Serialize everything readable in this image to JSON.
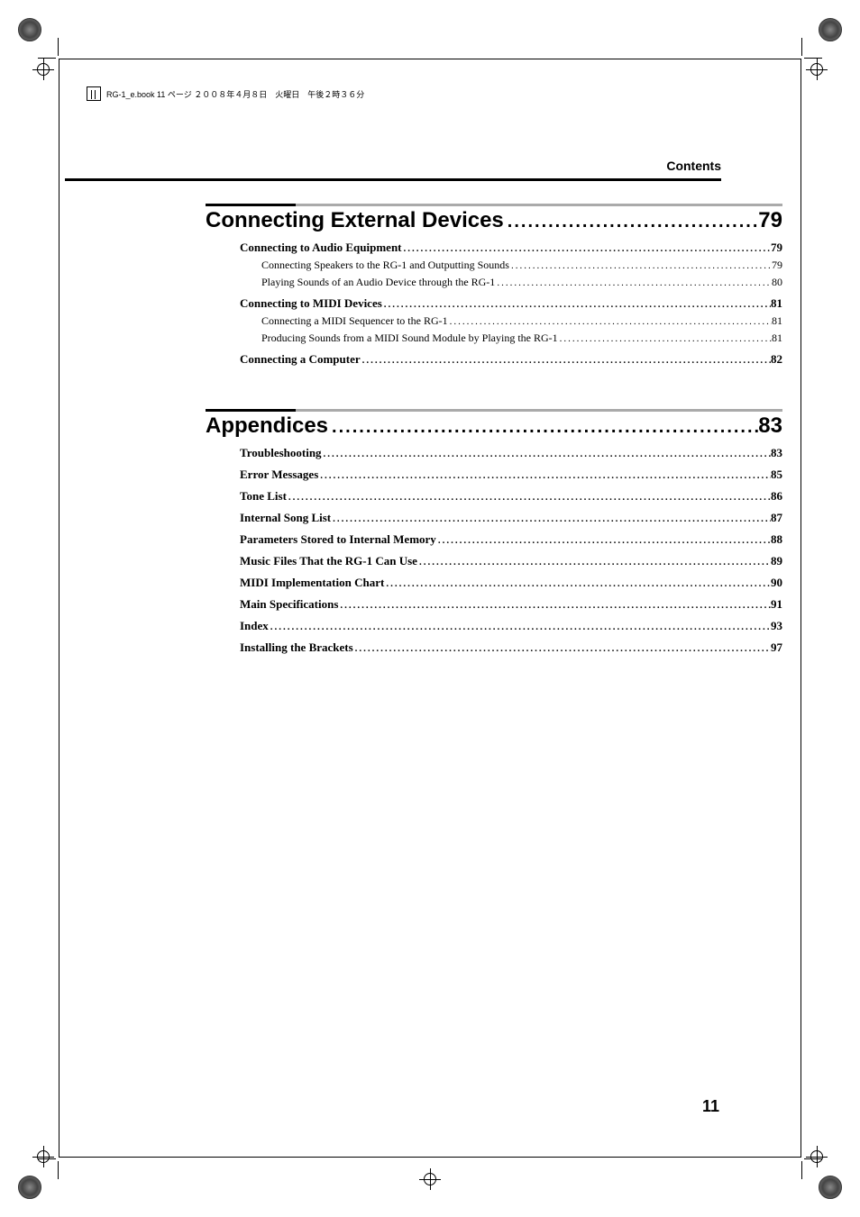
{
  "book_header": "RG-1_e.book  11 ページ  ２００８年４月８日　火曜日　午後２時３６分",
  "page_header": "Contents",
  "page_number": "11",
  "sections": [
    {
      "title": "Connecting External Devices",
      "page": "79",
      "entries": [
        {
          "level": 1,
          "label": "Connecting to Audio Equipment",
          "page": "79"
        },
        {
          "level": 2,
          "label": "Connecting Speakers to the RG-1 and Outputting Sounds",
          "page": "79"
        },
        {
          "level": 2,
          "label": "Playing Sounds of an Audio Device through the RG-1",
          "page": "80"
        },
        {
          "level": 1,
          "label": "Connecting to MIDI Devices",
          "page": "81"
        },
        {
          "level": 2,
          "label": "Connecting a MIDI Sequencer to the RG-1",
          "page": "81"
        },
        {
          "level": 2,
          "label": "Producing Sounds from a MIDI Sound Module by Playing the RG-1",
          "page": "81"
        },
        {
          "level": 1,
          "label": "Connecting a Computer",
          "page": "82"
        }
      ]
    },
    {
      "title": "Appendices",
      "page": "83",
      "entries": [
        {
          "level": 1,
          "label": "Troubleshooting",
          "page": "83"
        },
        {
          "level": 1,
          "label": "Error Messages",
          "page": "85"
        },
        {
          "level": 1,
          "label": "Tone List",
          "page": "86"
        },
        {
          "level": 1,
          "label": "Internal Song List",
          "page": "87"
        },
        {
          "level": 1,
          "label": "Parameters Stored to Internal Memory",
          "page": "88"
        },
        {
          "level": 1,
          "label": "Music Files That the RG-1 Can Use",
          "page": "89"
        },
        {
          "level": 1,
          "label": "MIDI Implementation Chart",
          "page": "90"
        },
        {
          "level": 1,
          "label": "Main Specifications",
          "page": "91"
        },
        {
          "level": 1,
          "label": "Index",
          "page": "93"
        },
        {
          "level": 1,
          "label": "Installing the Brackets",
          "page": "97"
        }
      ]
    }
  ],
  "colors": {
    "text": "#000000",
    "bar_dark": "#000000",
    "bar_light": "#aaaaaa",
    "background": "#ffffff"
  },
  "dots_pattern": "................................................................................................................",
  "leader_pattern": "..........................................................................................................................................................."
}
